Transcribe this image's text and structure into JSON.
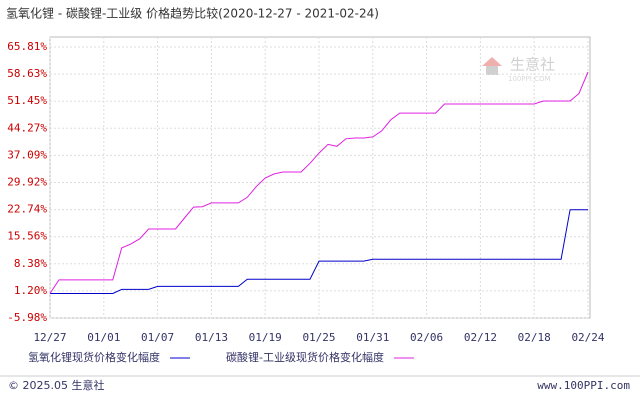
{
  "chart_data": {
    "type": "line",
    "title": "氢氧化锂 - 碳酸锂-工业级 价格趋势比较(2020-12-27 - 2021-02-24)",
    "categories": [
      "12/27",
      null,
      null,
      null,
      null,
      null,
      "01/01",
      null,
      null,
      null,
      null,
      null,
      "01/07",
      null,
      null,
      null,
      null,
      null,
      "01/13",
      null,
      null,
      null,
      null,
      null,
      "01/19",
      null,
      null,
      null,
      null,
      null,
      "01/25",
      null,
      null,
      null,
      null,
      null,
      "01/31",
      null,
      null,
      null,
      null,
      null,
      "02/06",
      null,
      null,
      null,
      null,
      null,
      "02/12",
      null,
      null,
      null,
      null,
      null,
      "02/18",
      null,
      null,
      null,
      null,
      null,
      "02/24"
    ],
    "series": [
      {
        "name": "氢氧化锂现货价格变化幅度",
        "color": "#0000cc",
        "values": [
          0.5,
          0.5,
          0.5,
          0.5,
          0.5,
          0.5,
          0.5,
          0.5,
          1.6,
          1.6,
          1.6,
          1.6,
          2.4,
          2.4,
          2.4,
          2.4,
          2.4,
          2.4,
          2.4,
          2.4,
          2.4,
          2.4,
          4.3,
          4.3,
          4.3,
          4.3,
          4.3,
          4.3,
          4.3,
          4.3,
          9.1,
          9.1,
          9.1,
          9.1,
          9.1,
          9.1,
          9.6,
          9.6,
          9.6,
          9.6,
          9.6,
          9.6,
          9.6,
          9.6,
          9.6,
          9.6,
          9.6,
          9.6,
          9.6,
          9.6,
          9.6,
          9.6,
          9.6,
          9.6,
          9.6,
          9.6,
          9.6,
          9.6,
          22.7,
          22.7,
          22.7
        ]
      },
      {
        "name": "碳酸锂-工业级现货价格变化幅度",
        "color": "#e020e0",
        "values": [
          0.5,
          4.1,
          4.1,
          4.1,
          4.1,
          4.1,
          4.1,
          4.1,
          12.6,
          13.6,
          15.0,
          17.6,
          17.6,
          17.6,
          17.6,
          20.5,
          23.4,
          23.5,
          24.5,
          24.5,
          24.5,
          24.5,
          26.0,
          28.8,
          31.1,
          32.2,
          32.7,
          32.7,
          32.7,
          35.0,
          37.7,
          40.0,
          39.5,
          41.5,
          41.7,
          41.7,
          42.0,
          43.6,
          46.5,
          48.3,
          48.3,
          48.3,
          48.3,
          48.3,
          50.7,
          50.7,
          50.7,
          50.7,
          50.7,
          50.7,
          50.7,
          50.7,
          50.7,
          50.7,
          50.7,
          51.5,
          51.5,
          51.5,
          51.5,
          53.5,
          59.2
        ]
      }
    ],
    "ylim": [
      -5.98,
      65.81
    ],
    "yticks": [
      {
        "value": -5.98,
        "label": "-5.98%"
      },
      {
        "value": 1.2,
        "label": "1.20%"
      },
      {
        "value": 8.38,
        "label": "8.38%"
      },
      {
        "value": 15.56,
        "label": "15.56%"
      },
      {
        "value": 22.74,
        "label": "22.74%"
      },
      {
        "value": 29.92,
        "label": "29.92%"
      },
      {
        "value": 37.09,
        "label": "37.09%"
      },
      {
        "value": 44.27,
        "label": "44.27%"
      },
      {
        "value": 51.45,
        "label": "51.45%"
      },
      {
        "value": 58.63,
        "label": "58.63%"
      },
      {
        "value": 65.81,
        "label": "65.81%"
      }
    ],
    "grid": true,
    "watermark": {
      "name": "生意社",
      "site": "100PPI.COM"
    },
    "footer": {
      "copyright": "© 2025.05 生意社",
      "site": "www.100PPI.com"
    }
  }
}
